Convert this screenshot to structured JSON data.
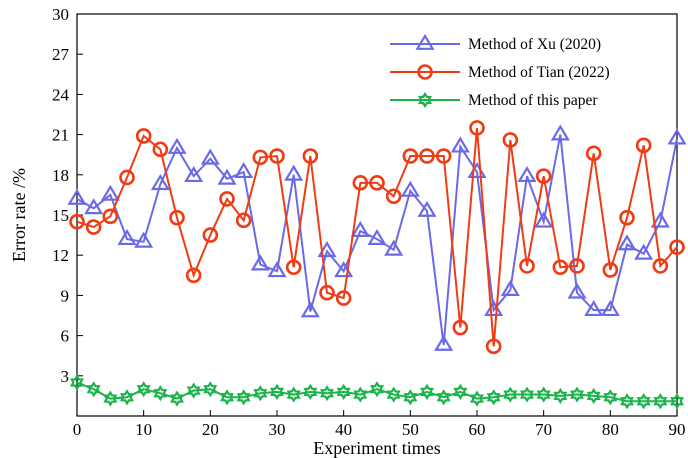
{
  "chart_data": {
    "type": "line",
    "xlabel": "Experiment times",
    "ylabel": "Error rate /%",
    "xlim": [
      0,
      90
    ],
    "ylim": [
      0,
      30
    ],
    "xticks": [
      0,
      10,
      20,
      30,
      40,
      50,
      60,
      70,
      80,
      90
    ],
    "yticks": [
      3,
      6,
      9,
      12,
      15,
      18,
      21,
      24,
      27,
      30
    ],
    "grid": false,
    "legend_position": "top-right",
    "series": [
      {
        "name": "Method of Xu (2020)",
        "color": "#6a6ae8",
        "marker": "triangle",
        "x": [
          0,
          2.5,
          5,
          7.5,
          10,
          12.5,
          15,
          17.5,
          20,
          22.5,
          25,
          27.5,
          30,
          32.5,
          35,
          37.5,
          40,
          42.5,
          45,
          47.5,
          50,
          52.5,
          55,
          57.5,
          60,
          62.5,
          65,
          67.5,
          70,
          72.5,
          75,
          77.5,
          80,
          82.5,
          85,
          87.5,
          90
        ],
        "y": [
          16.2,
          15.5,
          16.5,
          13.2,
          13.0,
          17.3,
          20.0,
          17.9,
          19.2,
          17.7,
          18.2,
          11.3,
          10.8,
          18.0,
          7.8,
          12.3,
          10.8,
          13.8,
          13.2,
          12.4,
          16.8,
          15.3,
          5.3,
          20.1,
          18.2,
          7.9,
          9.4,
          17.9,
          14.5,
          21.0,
          9.2,
          7.9,
          7.9,
          12.8,
          12.1,
          14.5,
          20.7
        ]
      },
      {
        "name": "Method of Tian (2022)",
        "color": "#f03c14",
        "marker": "circle",
        "x": [
          0,
          2.5,
          5,
          7.5,
          10,
          12.5,
          15,
          17.5,
          20,
          22.5,
          25,
          27.5,
          30,
          32.5,
          35,
          37.5,
          40,
          42.5,
          45,
          47.5,
          50,
          52.5,
          55,
          57.5,
          60,
          62.5,
          65,
          67.5,
          70,
          72.5,
          75,
          77.5,
          80,
          82.5,
          85,
          87.5,
          90
        ],
        "y": [
          14.5,
          14.1,
          14.9,
          17.8,
          20.9,
          19.9,
          14.8,
          10.5,
          13.5,
          16.2,
          14.6,
          19.3,
          19.4,
          11.1,
          19.4,
          9.2,
          8.8,
          17.4,
          17.4,
          16.4,
          19.4,
          19.4,
          19.4,
          6.6,
          21.5,
          5.2,
          20.6,
          11.2,
          17.9,
          11.1,
          11.2,
          19.6,
          10.9,
          14.8,
          20.2,
          11.2,
          12.6
        ]
      },
      {
        "name": "Method of this paper",
        "color": "#1bb34a",
        "marker": "hexagram",
        "x": [
          0,
          2.5,
          5,
          7.5,
          10,
          12.5,
          15,
          17.5,
          20,
          22.5,
          25,
          27.5,
          30,
          32.5,
          35,
          37.5,
          40,
          42.5,
          45,
          47.5,
          50,
          52.5,
          55,
          57.5,
          60,
          62.5,
          65,
          67.5,
          70,
          72.5,
          75,
          77.5,
          80,
          82.5,
          85,
          87.5,
          90
        ],
        "y": [
          2.5,
          2.0,
          1.3,
          1.4,
          2.0,
          1.7,
          1.3,
          1.9,
          2.0,
          1.4,
          1.4,
          1.7,
          1.8,
          1.6,
          1.8,
          1.7,
          1.8,
          1.6,
          2.0,
          1.6,
          1.4,
          1.8,
          1.4,
          1.8,
          1.3,
          1.4,
          1.6,
          1.6,
          1.6,
          1.5,
          1.6,
          1.5,
          1.4,
          1.1,
          1.1,
          1.1,
          1.1
        ]
      }
    ]
  }
}
